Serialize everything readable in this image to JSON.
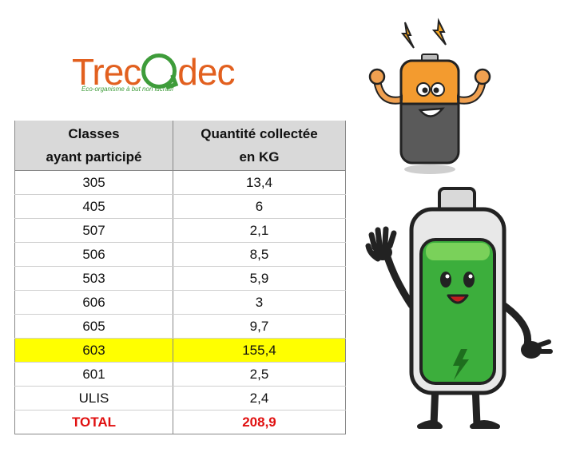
{
  "logo": {
    "part1": "Trec",
    "part2": "dec",
    "tagline": "Éco-organisme à but non lucratif"
  },
  "table": {
    "header": {
      "col1_line1": "Classes",
      "col1_line2": "ayant participé",
      "col2_line1": "Quantité collectée",
      "col2_line2": "en KG"
    },
    "rows": [
      {
        "classe": "305",
        "quantite": "13,4"
      },
      {
        "classe": "405",
        "quantite": "6"
      },
      {
        "classe": "507",
        "quantite": "2,1"
      },
      {
        "classe": "506",
        "quantite": "8,5"
      },
      {
        "classe": "503",
        "quantite": "5,9"
      },
      {
        "classe": "606",
        "quantite": "3"
      },
      {
        "classe": "605",
        "quantite": "9,7"
      },
      {
        "classe": "603",
        "quantite": "155,4"
      },
      {
        "classe": "601",
        "quantite": "2,5"
      },
      {
        "classe": "ULIS",
        "quantite": "2,4"
      }
    ],
    "total": {
      "label": "TOTAL",
      "value": "208,9"
    }
  },
  "colors": {
    "header_bg": "#d9d9d9",
    "highlight": "#ffff00",
    "total_text": "#e01010",
    "logo_orange": "#e2601f",
    "logo_green": "#3e9c3a"
  }
}
